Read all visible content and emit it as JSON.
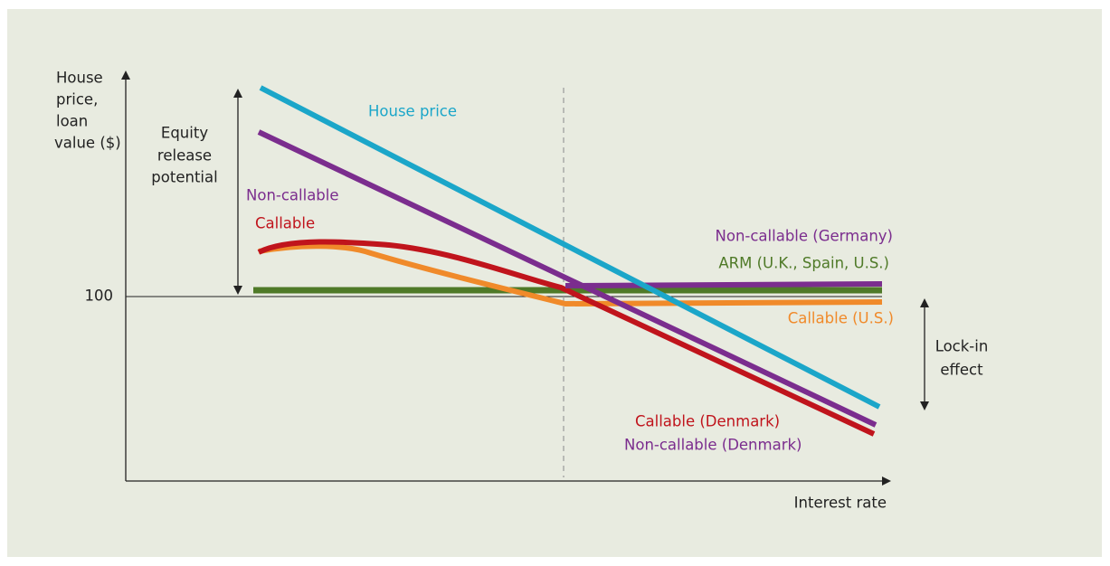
{
  "axes": {
    "y_label": [
      "House",
      "price,",
      "loan",
      "value ($)"
    ],
    "x_label": "Interest rate",
    "y_tick": "100"
  },
  "annotations": {
    "equity": [
      "Equity",
      "release",
      "potential"
    ],
    "lock_in": [
      "Lock-in",
      "effect"
    ]
  },
  "curve_labels": {
    "house_price": "House price",
    "non_callable": "Non-callable",
    "callable": "Callable",
    "non_callable_germany": "Non-callable (Germany)",
    "arm": "ARM (U.K., Spain, U.S.)",
    "callable_us": "Callable (U.S.)",
    "callable_denmark": "Callable (Denmark)",
    "non_callable_denmark": "Non-callable (Denmark)"
  }
}
